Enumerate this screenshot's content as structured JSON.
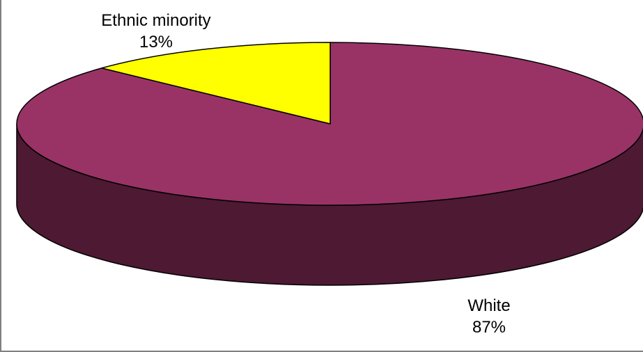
{
  "chart_data": {
    "type": "pie",
    "style": "3d",
    "slices": [
      {
        "name": "White",
        "value": 87,
        "label": "87%",
        "color": "#993366",
        "side_color": "#4d1933"
      },
      {
        "name": "Ethnic minority",
        "value": 13,
        "label": "13%",
        "color": "#ffff00",
        "side_color": "#808000"
      }
    ],
    "title": "",
    "legend": "none"
  }
}
